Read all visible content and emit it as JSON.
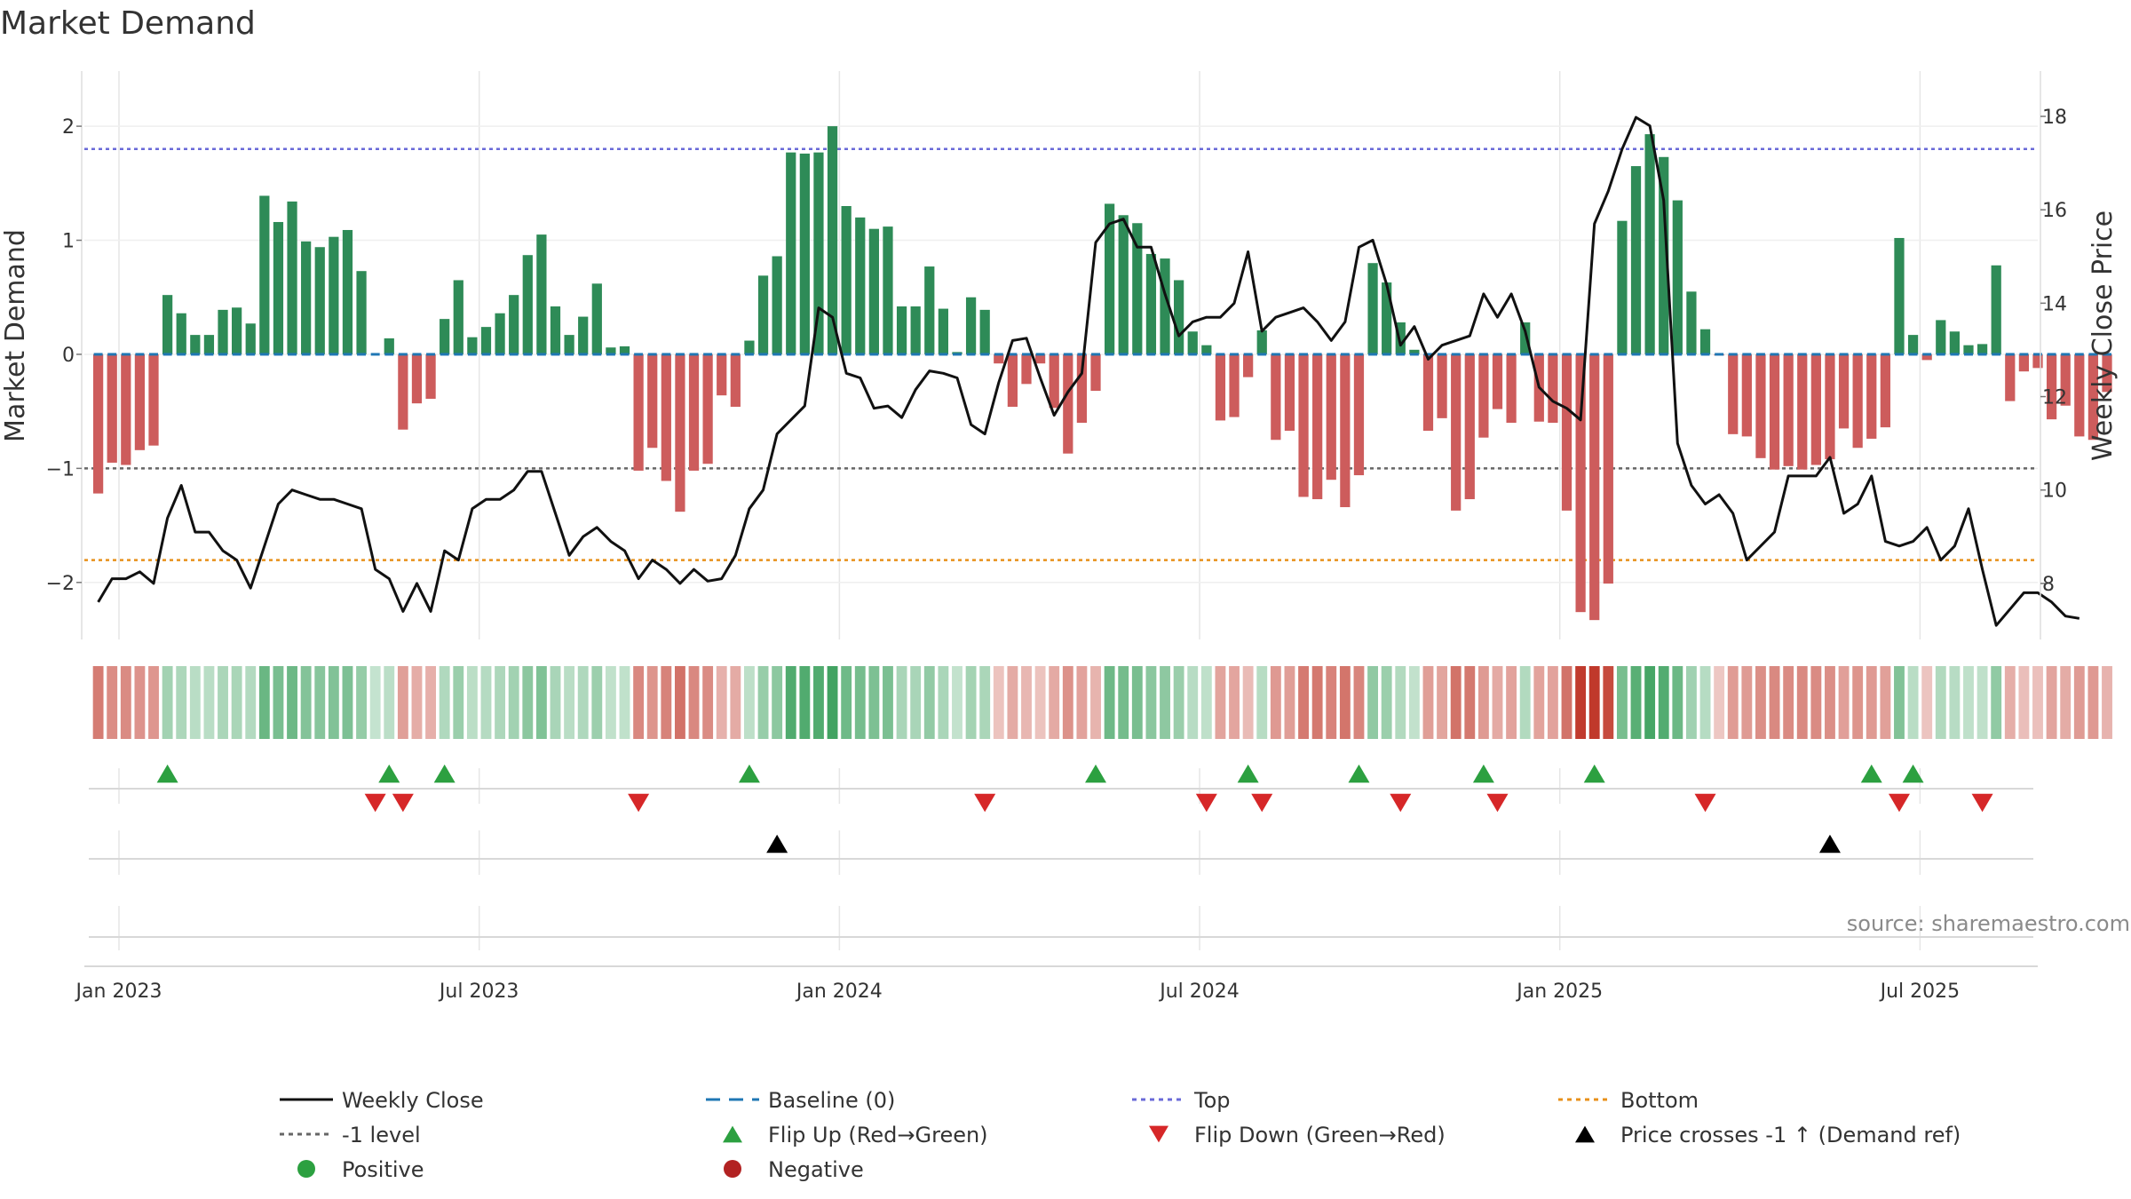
{
  "chart_data": {
    "type": "bar+line",
    "title": "Market Demand",
    "ylabel_left": "Market Demand",
    "ylabel_right": "Weekly Close Price",
    "ylim_left": [
      -2.5,
      2.25
    ],
    "ylim_right": [
      6.8,
      18.4
    ],
    "yticks_left": [
      {
        "value": 2,
        "label": "2"
      },
      {
        "value": 1,
        "label": "1"
      },
      {
        "value": 0,
        "label": "0"
      },
      {
        "value": -1,
        "label": "−1"
      },
      {
        "value": -2,
        "label": "−2"
      }
    ],
    "yticks_right": [
      {
        "value": 18,
        "label": "18"
      },
      {
        "value": 16,
        "label": "16"
      },
      {
        "value": 14,
        "label": "14"
      },
      {
        "value": 12,
        "label": "12"
      },
      {
        "value": 10,
        "label": "10"
      },
      {
        "value": 8,
        "label": "8"
      }
    ],
    "x_week_range": [
      -1,
      140
    ],
    "xticks": [
      {
        "week": 1.5,
        "label": "Jan 2023"
      },
      {
        "week": 27.5,
        "label": "Jul 2023"
      },
      {
        "week": 53.5,
        "label": "Jan 2024"
      },
      {
        "week": 79.5,
        "label": "Jul 2024"
      },
      {
        "week": 105.5,
        "label": "Jan 2025"
      },
      {
        "week": 131.5,
        "label": "Jul 2025"
      }
    ],
    "reference_lines": [
      {
        "name": "Top",
        "axis": "left",
        "value": 1.8,
        "color": "#6a6ad8"
      },
      {
        "name": "-1 level",
        "axis": "left",
        "value": -1.0,
        "color": "#666666"
      },
      {
        "name": "Baseline (0)",
        "axis": "left",
        "value": 0,
        "color": "#1f77b4"
      },
      {
        "name": "Bottom",
        "axis": "right",
        "value": 8.5,
        "color": "#e8901a"
      }
    ],
    "demand": [
      -1.22,
      -0.95,
      -0.97,
      -0.84,
      -0.8,
      0.52,
      0.36,
      0.17,
      0.17,
      0.39,
      0.41,
      0.27,
      1.39,
      1.16,
      1.34,
      0.99,
      0.94,
      1.03,
      1.09,
      0.73,
      0,
      0.14,
      -0.66,
      -0.43,
      -0.39,
      0.31,
      0.65,
      0.15,
      0.24,
      0.36,
      0.52,
      0.87,
      1.05,
      0.42,
      0.17,
      0.33,
      0.62,
      0.06,
      0.07,
      -1.02,
      -0.82,
      -1.11,
      -1.38,
      -1.02,
      -0.96,
      -0.36,
      -0.46,
      0.12,
      0.69,
      0.86,
      1.77,
      1.76,
      1.77,
      2.0,
      1.3,
      1.2,
      1.1,
      1.12,
      0.42,
      0.42,
      0.77,
      0.4,
      0.02,
      0.5,
      0.39,
      -0.08,
      -0.46,
      -0.26,
      -0.08,
      -0.47,
      -0.87,
      -0.6,
      -0.32,
      1.32,
      1.22,
      1.15,
      0.88,
      0.84,
      0.65,
      0.2,
      0.08,
      -0.58,
      -0.55,
      -0.2,
      0.21,
      -0.75,
      -0.67,
      -1.25,
      -1.27,
      -1.1,
      -1.34,
      -1.06,
      0.8,
      0.63,
      0.28,
      0.04,
      -0.67,
      -0.56,
      -1.37,
      -1.27,
      -0.73,
      -0.48,
      -0.6,
      0.28,
      -0.59,
      -0.6,
      -1.37,
      -2.26,
      -2.33,
      -2.01,
      1.17,
      1.65,
      1.93,
      1.73,
      1.35,
      0.55,
      0.22,
      -0.01,
      -0.7,
      -0.72,
      -0.91,
      -1.01,
      -0.98,
      -1.01,
      -0.97,
      -0.92,
      -0.65,
      -0.82,
      -0.74,
      -0.64,
      1.02,
      0.17,
      -0.05,
      0.3,
      0.2,
      0.08,
      0.09,
      0.78,
      -0.41,
      -0.15,
      -0.12,
      -0.57,
      -0.45,
      -0.72,
      -0.75,
      -0.33
    ],
    "weekly_close": [
      7.6,
      8.1,
      8.1,
      8.25,
      8.0,
      9.4,
      10.1,
      9.1,
      9.1,
      8.7,
      8.5,
      7.9,
      8.8,
      9.7,
      10.0,
      9.9,
      9.8,
      9.8,
      9.7,
      9.6,
      8.3,
      8.1,
      7.4,
      8.0,
      7.4,
      8.7,
      8.5,
      9.6,
      9.8,
      9.8,
      10.0,
      10.4,
      10.4,
      9.5,
      8.6,
      9.0,
      9.2,
      8.9,
      8.7,
      8.1,
      8.5,
      8.3,
      8.0,
      8.3,
      8.05,
      8.1,
      8.6,
      9.6,
      10.0,
      11.2,
      11.5,
      11.8,
      13.9,
      13.7,
      12.5,
      12.4,
      11.75,
      11.8,
      11.55,
      12.15,
      12.55,
      12.5,
      12.4,
      11.4,
      11.2,
      12.3,
      13.2,
      13.25,
      12.4,
      11.6,
      12.1,
      12.5,
      15.3,
      15.7,
      15.8,
      15.2,
      15.2,
      14.2,
      13.3,
      13.6,
      13.7,
      13.7,
      14.0,
      15.1,
      13.4,
      13.7,
      13.8,
      13.9,
      13.6,
      13.2,
      13.6,
      15.2,
      15.35,
      14.4,
      13.1,
      13.5,
      12.8,
      13.1,
      13.2,
      13.3,
      14.2,
      13.7,
      14.2,
      13.4,
      12.2,
      11.9,
      11.75,
      11.5,
      15.7,
      16.4,
      17.3,
      17.98,
      17.8,
      16.2,
      11.0,
      10.1,
      9.7,
      9.9,
      9.5,
      8.5,
      8.8,
      9.1,
      10.3,
      10.3,
      10.3,
      10.7,
      9.5,
      9.7,
      10.3,
      8.9,
      8.8,
      8.9,
      9.2,
      8.5,
      8.8,
      9.6,
      8.3,
      7.1,
      7.45,
      7.8,
      7.8,
      7.6,
      7.3,
      7.25
    ],
    "flip_up_weeks": [
      5,
      21,
      25,
      47,
      72,
      83,
      91,
      100,
      108,
      128,
      131
    ],
    "flip_down_weeks": [
      20,
      22,
      39,
      64,
      80,
      84,
      94,
      101,
      116,
      130,
      136
    ],
    "price_cross_weeks": [
      49,
      125
    ],
    "legend": [
      {
        "key": "weekly_close",
        "label": "Weekly Close",
        "symbol": "line",
        "color": "#111111"
      },
      {
        "key": "baseline",
        "label": "Baseline (0)",
        "symbol": "dashed",
        "color": "#1f77b4"
      },
      {
        "key": "top",
        "label": "Top",
        "symbol": "dotted",
        "color": "#6a6ad8"
      },
      {
        "key": "bottom",
        "label": "Bottom",
        "symbol": "dotted",
        "color": "#e8901a"
      },
      {
        "key": "minus1",
        "label": "-1 level",
        "symbol": "dotted",
        "color": "#666666"
      },
      {
        "key": "flip_up",
        "label": "Flip Up (Red→Green)",
        "symbol": "triangle-up",
        "color": "#2ca040"
      },
      {
        "key": "flip_down",
        "label": "Flip Down (Green→Red)",
        "symbol": "triangle-down",
        "color": "#d62728"
      },
      {
        "key": "price_cross",
        "label": "Price crosses -1 ↑ (Demand ref)",
        "symbol": "triangle-up",
        "color": "#000000"
      },
      {
        "key": "positive",
        "label": "Positive",
        "symbol": "circle",
        "color": "#2ca040"
      },
      {
        "key": "negative",
        "label": "Negative",
        "symbol": "circle",
        "color": "#b22222"
      }
    ],
    "source": "source: sharemaestro.com",
    "colors": {
      "positive_bar": "#2e8b57",
      "negative_bar": "#cd5c5c",
      "heat_green": "#2e9a52",
      "heat_red": "#c0392b",
      "grid": "#e6e6e6"
    }
  }
}
